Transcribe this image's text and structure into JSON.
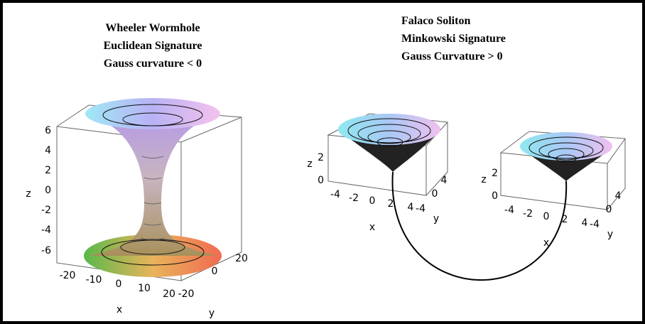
{
  "left": {
    "title": [
      "Wheeler Wormhole",
      "Euclidean Signature",
      "Gauss curvature < 0"
    ],
    "z_axis": "z",
    "z_ticks": [
      "6",
      "4",
      "2",
      "0",
      "-2",
      "-4",
      "-6"
    ],
    "x_axis": "x",
    "x_ticks": [
      "-20",
      "-10",
      "0",
      "10",
      "20"
    ],
    "y_axis": "y",
    "y_ticks": [
      "-20",
      "0",
      "20"
    ]
  },
  "right": {
    "title": [
      "Falaco Soliton",
      "Minkowski Signature",
      "Gauss Curvature > 0"
    ],
    "plots": [
      {
        "z_axis": "z",
        "z_ticks": [
          "2",
          "0"
        ],
        "x_axis": "x",
        "x_ticks": [
          "-4",
          "-2",
          "0",
          "2",
          "4"
        ],
        "y_axis": "y",
        "y_ticks": [
          "-4",
          "0",
          "4"
        ]
      },
      {
        "z_axis": "z",
        "z_ticks": [
          "2",
          "0"
        ],
        "x_axis": "x",
        "x_ticks": [
          "-4",
          "-2",
          "0",
          "2",
          "4"
        ],
        "y_axis": "y",
        "y_ticks": [
          "-4",
          "0",
          "4"
        ]
      }
    ]
  }
}
